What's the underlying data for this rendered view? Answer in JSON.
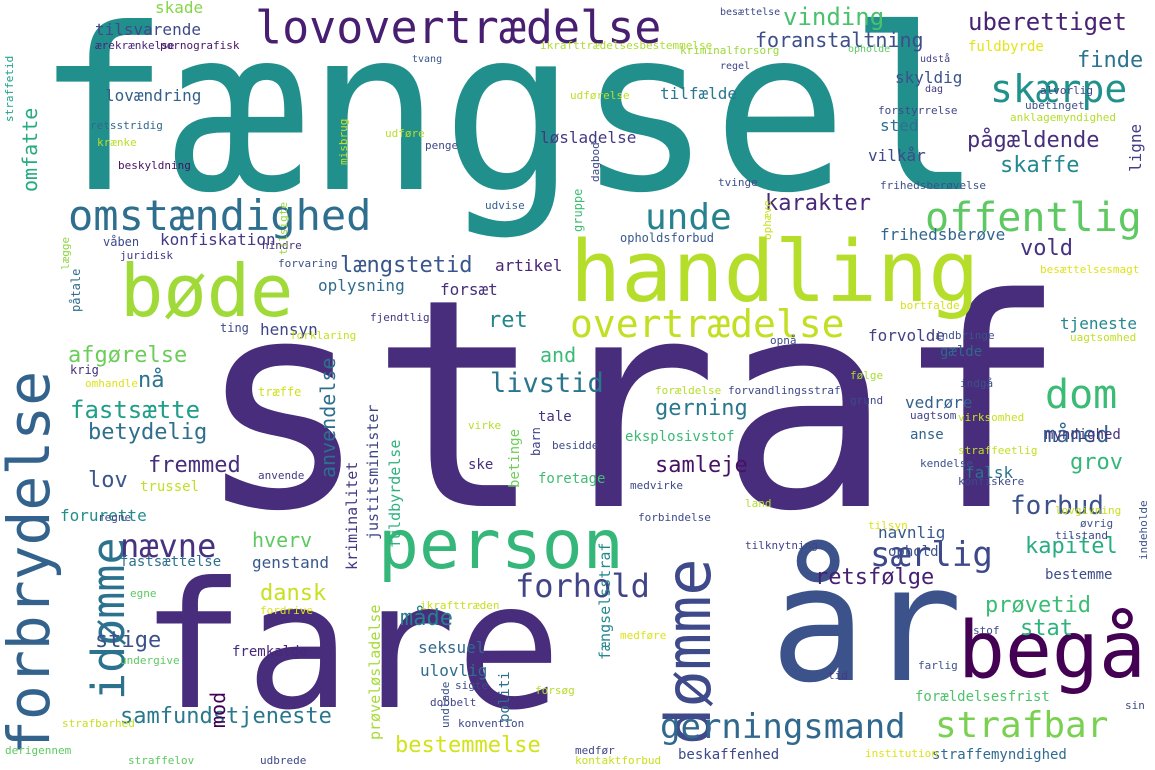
{
  "words": [
    {
      "text": "straf",
      "color": "#472d7b"
    },
    {
      "text": "fængsel",
      "color": "#21908d"
    },
    {
      "text": "år",
      "color": "#3b528b"
    },
    {
      "text": "fare",
      "color": "#472d7b"
    },
    {
      "text": "handling",
      "color": "#b5de2b"
    },
    {
      "text": "forbrydelse",
      "color": "#33638d"
    },
    {
      "text": "begå",
      "color": "#440154"
    },
    {
      "text": "bøde",
      "color": "#a0da39"
    },
    {
      "text": "person",
      "color": "#35b779"
    },
    {
      "text": "dømme",
      "color": "#3e4a89"
    },
    {
      "text": "idømme",
      "color": "#2c728e"
    },
    {
      "text": "lovovertrædelse",
      "color": "#481f70"
    },
    {
      "text": "omstændighed",
      "color": "#2e6e8e"
    },
    {
      "text": "offentlig",
      "color": "#5ec962"
    },
    {
      "text": "overtrædelse",
      "color": "#c2df23"
    },
    {
      "text": "strafbar",
      "color": "#7ad151"
    },
    {
      "text": "gerningsmand",
      "color": "#31688e"
    },
    {
      "text": "skærpe",
      "color": "#21918c"
    },
    {
      "text": "unde",
      "color": "#26828e"
    },
    {
      "text": "dom",
      "color": "#3bbb75"
    },
    {
      "text": "særlig",
      "color": "#3e4989"
    },
    {
      "text": "forhold",
      "color": "#414487"
    },
    {
      "text": "nævne",
      "color": "#46327e"
    },
    {
      "text": "samfundstjeneste",
      "color": "#2a788e"
    },
    {
      "text": "bestemmelse",
      "color": "#d2e21b"
    },
    {
      "text": "forbud",
      "color": "#3b528b"
    },
    {
      "text": "livstid",
      "color": "#2a768e"
    },
    {
      "text": "fastsætte",
      "color": "#1f9e89"
    },
    {
      "text": "uberettiget",
      "color": "#482374"
    },
    {
      "text": "vinding",
      "color": "#4ac16d"
    },
    {
      "text": "foranstaltning",
      "color": "#3d4e8a"
    },
    {
      "text": "finde",
      "color": "#2b748e"
    },
    {
      "text": "pågældende",
      "color": "#472f7d"
    },
    {
      "text": "skaffe",
      "color": "#23898e"
    },
    {
      "text": "karakter",
      "color": "#482878"
    },
    {
      "text": "vold",
      "color": "#46337f"
    },
    {
      "text": "længstetid",
      "color": "#39568c"
    },
    {
      "text": "ret",
      "color": "#24868e"
    },
    {
      "text": "and",
      "color": "#3aba76"
    },
    {
      "text": "afgørelse",
      "color": "#6ccd5a"
    },
    {
      "text": "nå",
      "color": "#2c738e"
    },
    {
      "text": "betydelig",
      "color": "#2e6f8e"
    },
    {
      "text": "fremmed",
      "color": "#472e7c"
    },
    {
      "text": "lov",
      "color": "#39558c"
    },
    {
      "text": "gerning",
      "color": "#2a788e"
    },
    {
      "text": "samleje",
      "color": "#471164"
    },
    {
      "text": "måned",
      "color": "#33638d"
    },
    {
      "text": "grov",
      "color": "#35b779"
    },
    {
      "text": "kapitel",
      "color": "#27ad81"
    },
    {
      "text": "retsfølge",
      "color": "#482071"
    },
    {
      "text": "prøvetid",
      "color": "#3dbc74"
    },
    {
      "text": "stat",
      "color": "#2eb37c"
    },
    {
      "text": "dansk",
      "color": "#c8e020"
    },
    {
      "text": "måde",
      "color": "#277f8e"
    },
    {
      "text": "stige",
      "color": "#3b518b"
    },
    {
      "text": "mod",
      "color": "#440154"
    },
    {
      "text": "anvendelse",
      "color": "#2e6f8e"
    },
    {
      "text": "hverv",
      "color": "#5ec962"
    },
    {
      "text": "genstand",
      "color": "#38588c"
    },
    {
      "text": "omfatte",
      "color": "#25ac82"
    },
    {
      "text": "vilkår",
      "color": "#3e4a89"
    },
    {
      "text": "løsladelse",
      "color": "#443a83"
    },
    {
      "text": "tilfælde",
      "color": "#2a778e"
    },
    {
      "text": "sted",
      "color": "#2d718e"
    },
    {
      "text": "skyldig",
      "color": "#3b528b"
    },
    {
      "text": "ligne",
      "color": "#424086"
    },
    {
      "text": "skade",
      "color": "#86d549"
    },
    {
      "text": "tilsvarende",
      "color": "#3e4a89"
    },
    {
      "text": "lovændring",
      "color": "#34608d"
    },
    {
      "text": "konfiskation",
      "color": "#443983"
    },
    {
      "text": "frihedsberøve",
      "color": "#31668e"
    },
    {
      "text": "oplysning",
      "color": "#2f6c8e"
    },
    {
      "text": "forsæt",
      "color": "#46307e"
    },
    {
      "text": "artikel",
      "color": "#482576"
    },
    {
      "text": "hensyn",
      "color": "#404588"
    },
    {
      "text": "tjeneste",
      "color": "#24878e"
    },
    {
      "text": "forvolde",
      "color": "#414287"
    },
    {
      "text": "vedrøre",
      "color": "#34618d"
    },
    {
      "text": "anse",
      "color": "#33628d"
    },
    {
      "text": "myndighed",
      "color": "#46327e"
    },
    {
      "text": "falsk",
      "color": "#2c738e"
    },
    {
      "text": "gælde",
      "color": "#31678e"
    },
    {
      "text": "forurette",
      "color": "#228d8d"
    },
    {
      "text": "fastsættelse",
      "color": "#2d708e"
    },
    {
      "text": "ophold",
      "color": "#3b528b"
    },
    {
      "text": "navnlig",
      "color": "#38588c"
    },
    {
      "text": "bestemme",
      "color": "#3d4e8a"
    },
    {
      "text": "fremkalde",
      "color": "#482878"
    },
    {
      "text": "seksuel",
      "color": "#31688e"
    },
    {
      "text": "ulovlig",
      "color": "#2e6e8e"
    },
    {
      "text": "politi",
      "color": "#2d718e"
    },
    {
      "text": "beskaffenhed",
      "color": "#3e4989"
    },
    {
      "text": "straffemyndighed",
      "color": "#306a8e"
    },
    {
      "text": "forældelsesfrist",
      "color": "#4ec36b"
    },
    {
      "text": "fængselsstraf",
      "color": "#23898e"
    },
    {
      "text": "prøveløsladelse",
      "color": "#a5db36"
    },
    {
      "text": "justitsminister",
      "color": "#3f4788"
    },
    {
      "text": "fuldbyrdelse",
      "color": "#2db27d"
    },
    {
      "text": "kriminalitet",
      "color": "#453882"
    },
    {
      "text": "eksplosivstof",
      "color": "#3aba76"
    },
    {
      "text": "tale",
      "color": "#46337f"
    },
    {
      "text": "ske",
      "color": "#46307e"
    },
    {
      "text": "foretage",
      "color": "#40bd72"
    },
    {
      "text": "trussel",
      "color": "#c0df25"
    },
    {
      "text": "betinge",
      "color": "#6ece58"
    },
    {
      "text": "barn",
      "color": "#414487"
    },
    {
      "text": "gruppe",
      "color": "#3fbc73"
    },
    {
      "text": "træffe",
      "color": "#d0e11c"
    },
    {
      "text": "krig",
      "color": "#472c7a"
    },
    {
      "text": "ting",
      "color": "#3e4a89"
    },
    {
      "text": "påtale",
      "color": "#2f6c8e"
    },
    {
      "text": "våben",
      "color": "#3e4989"
    },
    {
      "text": "juridisk",
      "color": "#443983"
    },
    {
      "text": "fjendtlig",
      "color": "#453781"
    },
    {
      "text": "forklaring",
      "color": "#c8e020"
    },
    {
      "text": "hindre",
      "color": "#46307e"
    },
    {
      "text": "forvaring",
      "color": "#3b528b"
    },
    {
      "text": "opholdsforbud",
      "color": "#38588c"
    },
    {
      "text": "udvise",
      "color": "#34608d"
    },
    {
      "text": "penge",
      "color": "#3e4a89"
    },
    {
      "text": "beskyldning",
      "color": "#471063"
    },
    {
      "text": "tvinge",
      "color": "#3d4e8a"
    },
    {
      "text": "frihedsberøvelse",
      "color": "#3b528b"
    },
    {
      "text": "retsstridig",
      "color": "#306a8e"
    },
    {
      "text": "krænke",
      "color": "#bade28"
    },
    {
      "text": "udføre",
      "color": "#b8de29"
    },
    {
      "text": "besættelse",
      "color": "#3e4989"
    },
    {
      "text": "regel",
      "color": "#404588"
    },
    {
      "text": "tvang",
      "color": "#38588c"
    },
    {
      "text": "opholde",
      "color": "#5cc863"
    },
    {
      "text": "udstå",
      "color": "#414487"
    },
    {
      "text": "dag",
      "color": "#443983"
    },
    {
      "text": "fuldbyrde",
      "color": "#e5e419"
    },
    {
      "text": "kriminalforsorg",
      "color": "#9bd93c"
    },
    {
      "text": "ikrafttrædelsesbestemmelse",
      "color": "#addc30"
    },
    {
      "text": "ærekrænkelse",
      "color": "#482677"
    },
    {
      "text": "pornografisk",
      "color": "#471365"
    },
    {
      "text": "alvorlig",
      "color": "#404588"
    },
    {
      "text": "ubetinget",
      "color": "#3b528b"
    },
    {
      "text": "anklagemyndighed",
      "color": "#b5de2b"
    },
    {
      "text": "udførelse",
      "color": "#bddf26"
    },
    {
      "text": "forstyrrelse",
      "color": "#3f4788"
    },
    {
      "text": "straffetid",
      "color": "#1fa188"
    },
    {
      "text": "misbrug",
      "color": "#c5e021"
    },
    {
      "text": "ophæve",
      "color": "#c8e020"
    },
    {
      "text": "dagbod",
      "color": "#3e4a89"
    },
    {
      "text": "tilsigte",
      "color": "#9bd93c"
    },
    {
      "text": "lægge",
      "color": "#90d743"
    },
    {
      "text": "besættelsesmagt",
      "color": "#dde318"
    },
    {
      "text": "bortfalde",
      "color": "#d8e219"
    },
    {
      "text": "opnå",
      "color": "#3e4a89"
    },
    {
      "text": "indbringe",
      "color": "#3b528b"
    },
    {
      "text": "uagtsomhed",
      "color": "#c2df23"
    },
    {
      "text": "omhandle",
      "color": "#dde318"
    },
    {
      "text": "forældelse",
      "color": "#b5de2b"
    },
    {
      "text": "forvandlingsstraf",
      "color": "#3e4989"
    },
    {
      "text": "følge",
      "color": "#a8db34"
    },
    {
      "text": "grund",
      "color": "#3e4a89"
    },
    {
      "text": "indgå",
      "color": "#3b528b"
    },
    {
      "text": "uagtsom",
      "color": "#414487"
    },
    {
      "text": "virksomhed",
      "color": "#c8e020"
    },
    {
      "text": "straffeetlig",
      "color": "#c2df23"
    },
    {
      "text": "virke",
      "color": "#b5de2b"
    },
    {
      "text": "besidde",
      "color": "#3e4a89"
    },
    {
      "text": "kendelse",
      "color": "#3b528b"
    },
    {
      "text": "konfiskere",
      "color": "#3e4989"
    },
    {
      "text": "anvende",
      "color": "#443983"
    },
    {
      "text": "regne",
      "color": "#404588"
    },
    {
      "text": "medvirke",
      "color": "#3e4a89"
    },
    {
      "text": "land",
      "color": "#b5de2b"
    },
    {
      "text": "lovgivning",
      "color": "#c8e020"
    },
    {
      "text": "øvrig",
      "color": "#3b528b"
    },
    {
      "text": "tilstand",
      "color": "#3e4989"
    },
    {
      "text": "tilsyn",
      "color": "#dde318"
    },
    {
      "text": "forbindelse",
      "color": "#3e4a89"
    },
    {
      "text": "tilknytning",
      "color": "#404588"
    },
    {
      "text": "indeholde",
      "color": "#3b528b"
    },
    {
      "text": "egne",
      "color": "#5ec962"
    },
    {
      "text": "fordrive",
      "color": "#dde318"
    },
    {
      "text": "ikrafttræden",
      "color": "#c8e020"
    },
    {
      "text": "stof",
      "color": "#3e4a89"
    },
    {
      "text": "farlig",
      "color": "#3b528b"
    },
    {
      "text": "undergive",
      "color": "#5ec962"
    },
    {
      "text": "tid",
      "color": "#443983"
    },
    {
      "text": "medføre",
      "color": "#dde318"
    },
    {
      "text": "sigte",
      "color": "#3e4a89"
    },
    {
      "text": "forsøg",
      "color": "#b5de2b"
    },
    {
      "text": "undlade",
      "color": "#3b528b"
    },
    {
      "text": "dobbelt",
      "color": "#404588"
    },
    {
      "text": "konvention",
      "color": "#3e4989"
    },
    {
      "text": "strafbarhed",
      "color": "#c8e020"
    },
    {
      "text": "sin",
      "color": "#3e4a89"
    },
    {
      "text": "derigennem",
      "color": "#5ec962"
    },
    {
      "text": "straffelov",
      "color": "#5ec962"
    },
    {
      "text": "udbrede",
      "color": "#3e4a89"
    },
    {
      "text": "medfør",
      "color": "#404588"
    },
    {
      "text": "kontaktforbud",
      "color": "#c8e020"
    },
    {
      "text": "institution",
      "color": "#dde318"
    }
  ]
}
